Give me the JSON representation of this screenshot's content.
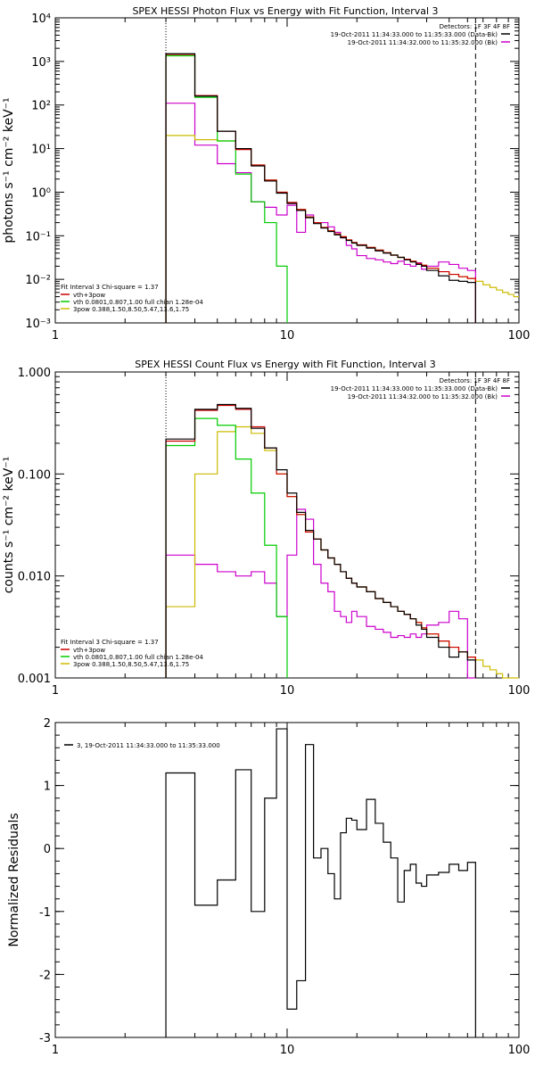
{
  "colors": {
    "data": "#000000",
    "total": "#cc0000",
    "thermal": "#00cc00",
    "powerlaw": "#ccbb00",
    "background": "#cc00cc"
  },
  "chart_data": [
    {
      "id": "photon",
      "type": "line",
      "title": "SPEX HESSI Photon Flux vs Energy with Fit Function, Interval 3",
      "ylabel": "photons s⁻¹ cm⁻² keV⁻¹",
      "xlabel": "",
      "xscale": "log",
      "yscale": "log",
      "xlim": [
        1,
        100
      ],
      "ylim": [
        0.001,
        10000
      ],
      "xticks": [
        1,
        10,
        100
      ],
      "xtick_labels": [
        "1",
        "10",
        "100"
      ],
      "yticks": [
        0.001,
        0.01,
        0.1,
        1,
        10,
        100,
        1000,
        10000
      ],
      "ytick_labels": [
        "10⁻³",
        "10⁻²",
        "10⁻¹",
        "10⁰",
        "10¹",
        "10²",
        "10³",
        "10⁴"
      ],
      "vlines": [
        {
          "x": 3,
          "style": "dotted"
        },
        {
          "x": 65,
          "style": "dashed"
        }
      ],
      "legend_top": {
        "title": "Detectors: 1F 3F 4F 8F",
        "entries": [
          {
            "label": "19-Oct-2011 11:34:33.000 to 11:35:33.000 (Data-Bk)",
            "color": "#000000"
          },
          {
            "label": "19-Oct-2011 11:34:32.000 to 11:35:32.000 (Bk)",
            "color": "#cc00cc"
          }
        ]
      },
      "legend_bottom": {
        "title": "Fit Interval 3   Chi-square = 1.37",
        "entries": [
          {
            "label": "vth+3pow",
            "color": "#cc0000"
          },
          {
            "label": "vth 0.0801,0.807,1.00  full chian 1.28e-04",
            "color": "#00cc00"
          },
          {
            "label": "3pow 0.388,1.50,8.50,5.47,13.6,1.75",
            "color": "#ccbb00"
          }
        ]
      },
      "edges": [
        3,
        4,
        5,
        6,
        7,
        8,
        9,
        10,
        11,
        12,
        13,
        14,
        15,
        16,
        17,
        18,
        19,
        20,
        22,
        24,
        26,
        28,
        30,
        32,
        34,
        36,
        38,
        40,
        45,
        50,
        55,
        60,
        65,
        70,
        75,
        80,
        85,
        90,
        95,
        100
      ],
      "series": [
        {
          "key": "data",
          "range": [
            0,
            32
          ],
          "values": [
            1500,
            160,
            25,
            10,
            4,
            1.8,
            0.95,
            0.55,
            0.38,
            0.26,
            0.19,
            0.15,
            0.125,
            0.105,
            0.09,
            0.078,
            0.068,
            0.06,
            0.052,
            0.045,
            0.04,
            0.036,
            0.032,
            0.028,
            0.025,
            0.022,
            0.02,
            0.016,
            0.012,
            0.0095,
            0.009,
            0.0085
          ]
        },
        {
          "key": "total",
          "range": [
            0,
            32
          ],
          "values": [
            1450,
            165,
            25,
            9.5,
            4.2,
            1.9,
            1.0,
            0.58,
            0.4,
            0.27,
            0.2,
            0.155,
            0.13,
            0.11,
            0.095,
            0.08,
            0.07,
            0.062,
            0.054,
            0.047,
            0.041,
            0.036,
            0.032,
            0.029,
            0.026,
            0.023,
            0.021,
            0.018,
            0.015,
            0.013,
            0.0115,
            0.0105
          ]
        },
        {
          "key": "thermal",
          "range": [
            0,
            7
          ],
          "values": [
            1350,
            150,
            15,
            2.6,
            0.6,
            0.2,
            0.02
          ]
        },
        {
          "key": "thermal_cut",
          "range": [
            6,
            7
          ],
          "values": [
            0.001
          ]
        },
        {
          "key": "powerlaw",
          "range": [
            0,
            39
          ],
          "values": [
            20,
            16,
            15,
            10,
            4.2,
            1.9,
            1.0,
            0.58,
            0.4,
            0.27,
            0.2,
            0.155,
            0.13,
            0.11,
            0.095,
            0.08,
            0.07,
            0.062,
            0.054,
            0.047,
            0.041,
            0.036,
            0.032,
            0.029,
            0.026,
            0.023,
            0.021,
            0.018,
            0.015,
            0.013,
            0.0115,
            0.0105,
            0.009,
            0.0075,
            0.0065,
            0.0057,
            0.005,
            0.0045,
            0.004
          ]
        },
        {
          "key": "background",
          "range": [
            0,
            32
          ],
          "values": [
            110,
            12,
            4.5,
            2.8,
            0.6,
            0.45,
            0.3,
            0.5,
            0.12,
            0.3,
            0.2,
            0.2,
            0.16,
            0.12,
            0.09,
            0.06,
            0.05,
            0.035,
            0.03,
            0.028,
            0.025,
            0.023,
            0.026,
            0.022,
            0.02,
            0.024,
            0.017,
            0.02,
            0.025,
            0.022,
            0.018,
            0.016
          ]
        }
      ]
    },
    {
      "id": "count",
      "type": "line",
      "title": "SPEX HESSI Count Flux vs Energy with Fit Function, Interval 3",
      "ylabel": "counts s⁻¹ cm⁻² keV⁻¹",
      "xlabel": "",
      "xscale": "log",
      "yscale": "log",
      "xlim": [
        1,
        100
      ],
      "ylim": [
        0.001,
        1.0
      ],
      "xticks": [
        1,
        10,
        100
      ],
      "xtick_labels": [
        "1",
        "10",
        "100"
      ],
      "yticks": [
        0.001,
        0.01,
        0.1,
        1.0
      ],
      "ytick_labels": [
        "0.001",
        "0.010",
        "0.100",
        "1.000"
      ],
      "vlines": [
        {
          "x": 3,
          "style": "dotted"
        },
        {
          "x": 65,
          "style": "dashed"
        }
      ],
      "legend_top": {
        "title": "Detectors: 1F 3F 4F 8F",
        "entries": [
          {
            "label": "19-Oct-2011 11:34:33.000 to 11:35:33.000 (Data-Bk)",
            "color": "#000000"
          },
          {
            "label": "19-Oct-2011 11:34:32.000 to 11:35:32.000 (Bk)",
            "color": "#cc00cc"
          }
        ]
      },
      "legend_bottom": {
        "title": "Fit Interval 3   Chi-square = 1.37",
        "entries": [
          {
            "label": "vth+3pow",
            "color": "#cc0000"
          },
          {
            "label": "vth 0.0801,0.807,1.00  full chian 1.28e-04",
            "color": "#00cc00"
          },
          {
            "label": "3pow 0.388,1.50,8.50,5.47,13.6,1.75",
            "color": "#ccbb00"
          }
        ]
      },
      "edges": [
        3,
        4,
        5,
        6,
        7,
        8,
        9,
        10,
        11,
        12,
        13,
        14,
        15,
        16,
        17,
        18,
        19,
        20,
        22,
        24,
        26,
        28,
        30,
        32,
        34,
        36,
        38,
        40,
        45,
        50,
        55,
        60,
        65,
        70,
        75,
        80,
        85,
        90,
        95,
        100
      ],
      "series": [
        {
          "key": "data",
          "range": [
            0,
            32
          ],
          "values": [
            0.22,
            0.43,
            0.48,
            0.44,
            0.28,
            0.18,
            0.11,
            0.065,
            0.042,
            0.028,
            0.023,
            0.018,
            0.015,
            0.013,
            0.011,
            0.0095,
            0.0085,
            0.0078,
            0.007,
            0.006,
            0.0055,
            0.005,
            0.0045,
            0.0042,
            0.0038,
            0.0033,
            0.003,
            0.0025,
            0.002,
            0.0016,
            0.0018,
            0.0015
          ]
        },
        {
          "key": "total",
          "range": [
            0,
            32
          ],
          "values": [
            0.21,
            0.42,
            0.47,
            0.43,
            0.29,
            0.18,
            0.1,
            0.06,
            0.04,
            0.027,
            0.023,
            0.018,
            0.015,
            0.013,
            0.011,
            0.0095,
            0.0085,
            0.0078,
            0.007,
            0.006,
            0.0055,
            0.005,
            0.0045,
            0.0042,
            0.0038,
            0.0035,
            0.0031,
            0.0027,
            0.0023,
            0.002,
            0.0018,
            0.0016
          ]
        },
        {
          "key": "thermal",
          "range": [
            0,
            7
          ],
          "values": [
            0.19,
            0.35,
            0.3,
            0.14,
            0.065,
            0.02,
            0.004
          ]
        },
        {
          "key": "thermal_cut",
          "range": [
            6,
            7
          ],
          "values": [
            0.001
          ]
        },
        {
          "key": "powerlaw",
          "range": [
            0,
            39
          ],
          "values": [
            0.005,
            0.1,
            0.26,
            0.29,
            0.25,
            0.17,
            0.1,
            0.06,
            0.04,
            0.027,
            0.023,
            0.018,
            0.015,
            0.013,
            0.011,
            0.0095,
            0.0085,
            0.0078,
            0.007,
            0.006,
            0.0055,
            0.005,
            0.0045,
            0.0042,
            0.0038,
            0.0035,
            0.0031,
            0.0027,
            0.0023,
            0.002,
            0.0018,
            0.0016,
            0.0015,
            0.0013,
            0.0012,
            0.0011,
            0.001,
            0.001,
            0.001
          ]
        },
        {
          "key": "background",
          "range": [
            0,
            32
          ],
          "values": [
            0.016,
            0.013,
            0.011,
            0.01,
            0.011,
            0.0085,
            0.004,
            0.016,
            0.045,
            0.036,
            0.013,
            0.0085,
            0.007,
            0.0045,
            0.004,
            0.0035,
            0.0045,
            0.004,
            0.0032,
            0.003,
            0.0028,
            0.0025,
            0.0026,
            0.0025,
            0.0027,
            0.0025,
            0.0027,
            0.0033,
            0.0035,
            0.0045,
            0.0038,
            0.001
          ]
        }
      ]
    },
    {
      "id": "residuals",
      "type": "line",
      "title": "",
      "ylabel": "Normalized Residuals",
      "xlabel": "",
      "xscale": "log",
      "yscale": "linear",
      "xlim": [
        1,
        100
      ],
      "ylim": [
        -3,
        2
      ],
      "xticks": [
        1,
        10,
        100
      ],
      "xtick_labels": [
        "1",
        "10",
        "100"
      ],
      "yticks": [
        -3,
        -2,
        -1,
        0,
        1,
        2
      ],
      "ytick_labels": [
        "-3",
        "-2",
        "-1",
        "0",
        "1",
        "2"
      ],
      "legend_top_left": {
        "entries": [
          {
            "label": "3, 19-Oct-2011 11:34:33.000 to 11:35:33.000",
            "color": "#000000"
          }
        ]
      },
      "edges": [
        3,
        4,
        5,
        6,
        7,
        8,
        9,
        10,
        11,
        12,
        13,
        14,
        15,
        16,
        17,
        18,
        19,
        20,
        22,
        24,
        26,
        28,
        30,
        32,
        34,
        36,
        38,
        40,
        45,
        50,
        55,
        60,
        65
      ],
      "series": [
        {
          "key": "data",
          "range": [
            0,
            32
          ],
          "drop_to_min": true,
          "values": [
            1.2,
            -0.9,
            -0.5,
            1.25,
            -1.0,
            0.8,
            1.9,
            -2.55,
            -2.1,
            1.65,
            -0.15,
            0.0,
            -0.4,
            -0.8,
            0.25,
            0.48,
            0.45,
            0.3,
            0.78,
            0.4,
            0.1,
            -0.15,
            -0.85,
            -0.35,
            -0.25,
            -0.55,
            -0.6,
            -0.42,
            -0.38,
            -0.25,
            -0.35,
            -0.22
          ]
        }
      ]
    }
  ]
}
